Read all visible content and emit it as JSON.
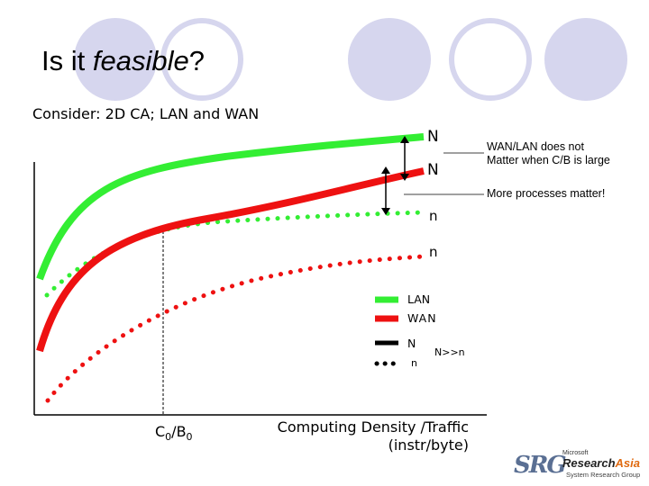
{
  "title": {
    "plain": "Is it ",
    "emph": "feasible",
    "end": "?"
  },
  "consider": "Consider: 2D CA; LAN and WAN",
  "gap_labels": {
    "upper_N": "N",
    "lower_N": "N",
    "upper_n": "n",
    "lower_n": "n"
  },
  "notes": {
    "wan_lan_line1": "WAN/LAN does not",
    "wan_lan_line2": "Matter when C/B is large",
    "more_processes": "More processes matter!"
  },
  "legend": {
    "lan": "LAN",
    "wan": "WAN",
    "solid": "N",
    "dotted": "n",
    "relation": "N>>n"
  },
  "axis": {
    "c0_base": "C",
    "c0_sub1": "0",
    "c0_slash": "/B",
    "c0_sub2": "0",
    "xlabel_line1": "Computing Density /Traffic",
    "xlabel_line2": "(instr/byte)"
  },
  "colors": {
    "lan": "#33ee33",
    "wan": "#ee1111",
    "decor": "#d6d6ee",
    "arrow": "#000000"
  },
  "logo": {
    "mark": "SRG",
    "top": "Microsoft",
    "name_a": "Research",
    "name_b": "Asia",
    "bottom": "System Research Group"
  }
}
